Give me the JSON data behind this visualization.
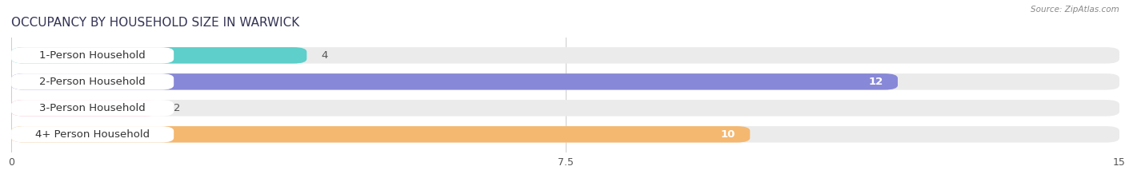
{
  "title": "OCCUPANCY BY HOUSEHOLD SIZE IN WARWICK",
  "source": "Source: ZipAtlas.com",
  "categories": [
    "1-Person Household",
    "2-Person Household",
    "3-Person Household",
    "4+ Person Household"
  ],
  "values": [
    4,
    12,
    2,
    10
  ],
  "bar_colors": [
    "#5ecfca",
    "#8888d8",
    "#f4a0be",
    "#f5b870"
  ],
  "background_color_bar": "#ebebeb",
  "value_colors": [
    "#555555",
    "#ffffff",
    "#555555",
    "#ffffff"
  ],
  "xlim": [
    0,
    15
  ],
  "xticks": [
    0,
    7.5,
    15
  ],
  "fig_width": 14.06,
  "fig_height": 2.33,
  "title_fontsize": 11,
  "bar_height": 0.62,
  "bar_gap": 0.38,
  "label_fontsize": 9.5,
  "value_fontsize": 9.5,
  "fig_bg": "#ffffff",
  "plot_bg": "#ffffff"
}
